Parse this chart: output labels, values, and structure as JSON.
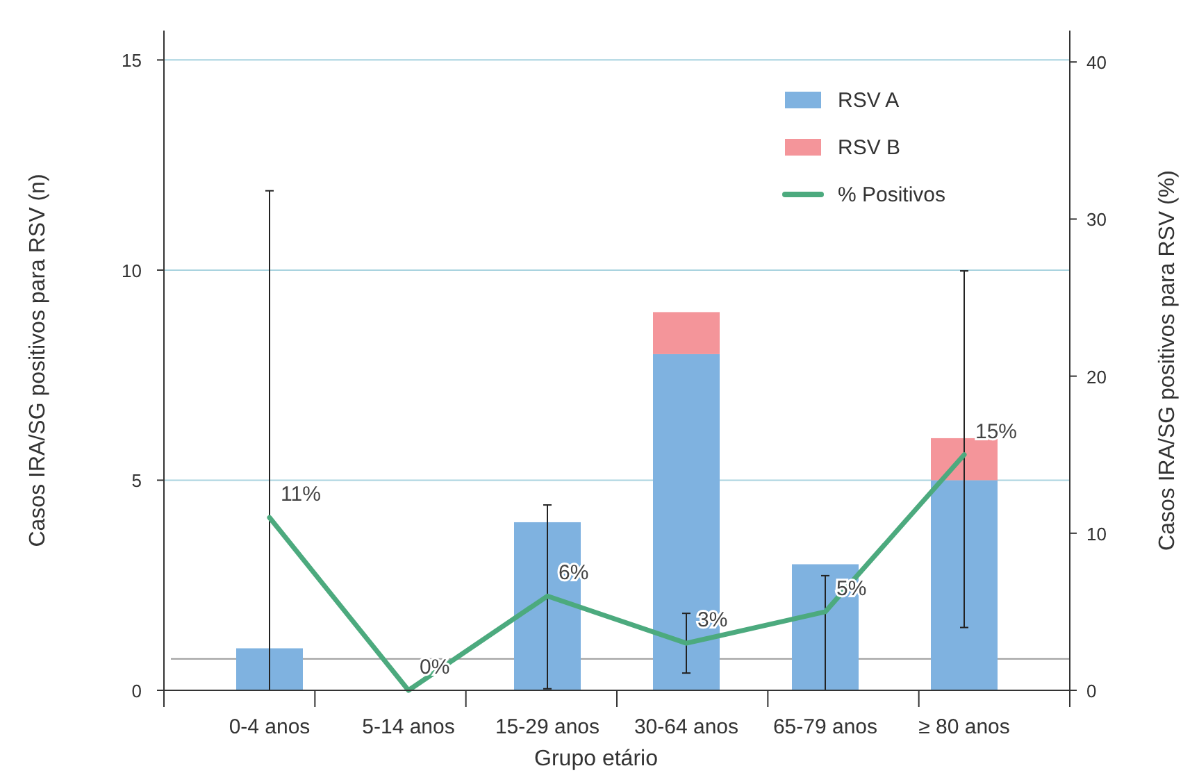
{
  "chart_data": {
    "type": "bar",
    "xlabel": "Grupo etário",
    "ylabel": "Casos IRA/SG positivos para RSV (n)",
    "y2label": "Casos IRA/SG positivos para RSV (%)",
    "categories": [
      "0-4 anos",
      "5-14 anos",
      "15-29 anos",
      "30-64 anos",
      "65-79 anos",
      "≥ 80 anos"
    ],
    "stacked": true,
    "series": [
      {
        "name": "RSV A",
        "color": "#7fb2e0",
        "values": [
          1,
          0,
          4,
          8,
          3,
          5
        ]
      },
      {
        "name": "RSV B",
        "color": "#f4959a",
        "values": [
          0,
          0,
          0,
          1,
          0,
          1
        ]
      },
      {
        "name": "% Positivos",
        "type": "line",
        "axis": "y2",
        "color": "#4caa7e",
        "values": [
          11,
          0,
          6,
          3,
          5,
          15
        ],
        "value_labels": [
          "11%",
          "0%",
          "6%",
          "3%",
          "5%",
          "15%"
        ],
        "errors": [
          [
            0,
            31.8
          ],
          null,
          [
            0.1,
            11.8
          ],
          [
            1.1,
            4.9
          ],
          [
            0,
            7.3
          ],
          [
            4,
            26.7
          ]
        ]
      }
    ],
    "ylim": [
      0,
      15.7
    ],
    "yticks": [
      0,
      5,
      10,
      15
    ],
    "y2lim": [
      0,
      42
    ],
    "y2ticks": [
      0,
      10,
      20,
      30,
      40
    ],
    "ref_lines": [
      {
        "axis": "y2",
        "value": 2,
        "color": "#999999"
      }
    ],
    "grid": "y",
    "legend": "top right",
    "marker": "none",
    "line_style": "solid"
  }
}
